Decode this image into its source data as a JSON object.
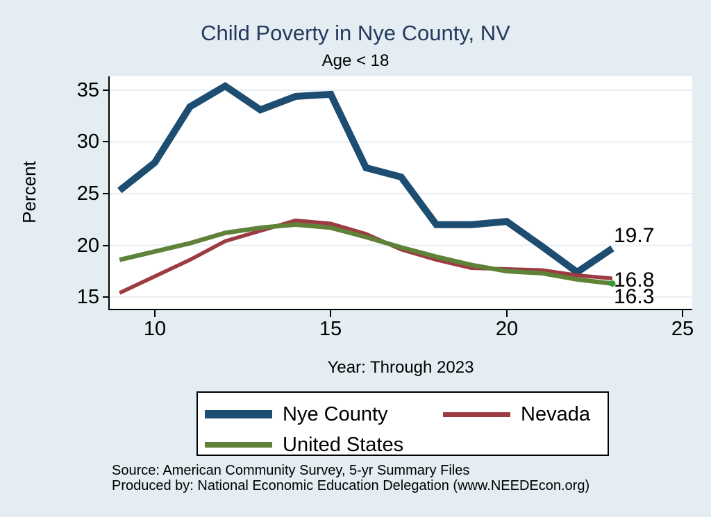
{
  "header": {
    "title": "Child Poverty in Nye County, NV",
    "subtitle": "Age < 18"
  },
  "footer": {
    "source_line": "Source: American Community Survey, 5-yr Summary Files",
    "produced_line": "Produced by: National Economic Education Delegation (www.NEEDEcon.org)"
  },
  "colors": {
    "background": "#e3edf2",
    "plot_background": "#ffffff",
    "title_text": "#24395e",
    "grid": "#e7eff5",
    "axis": "#000000",
    "text": "#000000",
    "end_marker": "#2f9e35"
  },
  "chart_data": {
    "type": "line",
    "title": "Child Poverty in Nye County, NV",
    "subtitle": "Age < 18",
    "xlabel": "Year: Through 2023",
    "ylabel": "Percent",
    "x": [
      9,
      10,
      11,
      12,
      13,
      14,
      15,
      16,
      17,
      18,
      19,
      20,
      21,
      22,
      23
    ],
    "series": [
      {
        "name": "Nye County",
        "color": "#1e4d72",
        "width": 10,
        "values": [
          25.3,
          28.0,
          33.4,
          35.4,
          33.1,
          34.4,
          34.6,
          27.5,
          26.6,
          22.0,
          22.0,
          22.3,
          19.9,
          17.4,
          19.7
        ]
      },
      {
        "name": "Nevada",
        "color": "#9d3b43",
        "width": 5.5,
        "values": [
          15.4,
          17.0,
          18.6,
          20.4,
          21.4,
          22.4,
          22.1,
          21.1,
          19.6,
          18.6,
          17.8,
          17.7,
          17.6,
          17.1,
          16.8
        ]
      },
      {
        "name": "United States",
        "color": "#5f8238",
        "width": 6.5,
        "values": [
          18.6,
          19.4,
          20.2,
          21.2,
          21.7,
          22.0,
          21.7,
          20.8,
          19.8,
          18.9,
          18.1,
          17.5,
          17.3,
          16.7,
          16.3
        ],
        "end_marker": true
      }
    ],
    "end_labels": [
      {
        "text": "19.7",
        "dy": -18
      },
      {
        "text": "16.8",
        "dy": 3
      },
      {
        "text": "16.3",
        "dy": 19
      }
    ],
    "xticks": [
      10,
      15,
      20,
      25
    ],
    "yticks": [
      15,
      20,
      25,
      30,
      35
    ],
    "xlim": [
      8.72,
      25.27
    ],
    "ylim": [
      13.86,
      36.34
    ],
    "grid": true,
    "legend_position": "bottom"
  }
}
